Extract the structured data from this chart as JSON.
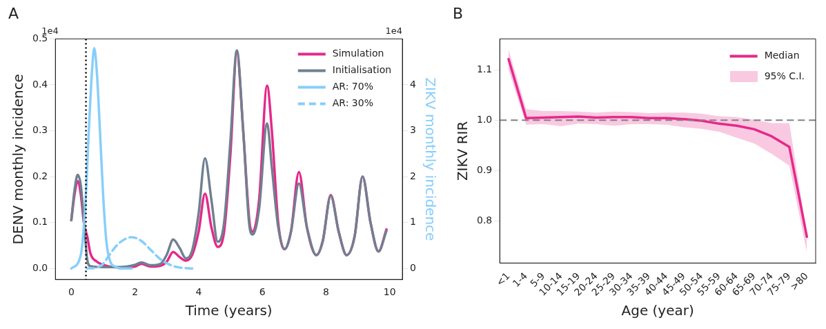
{
  "chart_data": [
    {
      "type": "line",
      "title": "A",
      "xlabel": "Time (years)",
      "ylabel": "DENV monthly incidence",
      "y2label": "ZIKV monthly incidence",
      "annotations": [
        "1e4",
        "1e4"
      ],
      "xlim": [
        -0.5,
        10.4
      ],
      "xticks": [
        0,
        2,
        4,
        6,
        8,
        10
      ],
      "ylim": [
        -0.024,
        0.5
      ],
      "yticks": [
        {
          "value": 0,
          "label": "0.0"
        },
        0.1,
        0.2,
        0.3,
        0.4,
        0.5
      ],
      "y2lim": [
        -0.24,
        5.0
      ],
      "y2ticks": [
        0,
        1,
        2,
        3,
        4
      ],
      "legend": "top right",
      "marker": "none",
      "ref_lines": [
        {
          "axis": "x",
          "value": 0.46,
          "color": "#000000",
          "line_style": "dotted"
        }
      ],
      "series": [
        {
          "name": "Simulation",
          "color": "#e6288a",
          "x": [
            0,
            0.1,
            0.2,
            0.3,
            0.4,
            0.5,
            0.6,
            0.8,
            1.0,
            1.5,
            2.0,
            2.2,
            2.5,
            2.8,
            3.0,
            3.2,
            3.4,
            3.6,
            3.8,
            4.0,
            4.2,
            4.4,
            4.6,
            4.8,
            5.0,
            5.2,
            5.4,
            5.6,
            5.7,
            5.9,
            6.15,
            6.3,
            6.5,
            6.7,
            6.9,
            7.15,
            7.4,
            7.7,
            7.9,
            8.15,
            8.4,
            8.65,
            8.9,
            9.15,
            9.4,
            9.65,
            9.9
          ],
          "values": [
            0.105,
            0.16,
            0.19,
            0.16,
            0.097,
            0.07,
            0.033,
            0.015,
            0.008,
            0.002,
            0.004,
            0.01,
            0.004,
            0.006,
            0.015,
            0.036,
            0.025,
            0.017,
            0.03,
            0.08,
            0.163,
            0.09,
            0.047,
            0.08,
            0.25,
            0.47,
            0.3,
            0.1,
            0.08,
            0.15,
            0.398,
            0.3,
            0.1,
            0.042,
            0.08,
            0.21,
            0.09,
            0.029,
            0.06,
            0.16,
            0.08,
            0.029,
            0.07,
            0.2,
            0.1,
            0.037,
            0.085
          ]
        },
        {
          "name": "Initialisation",
          "color": "#708090",
          "x": [
            0,
            0.1,
            0.2,
            0.3,
            0.4,
            0.5,
            0.6,
            1.0,
            1.5,
            2.0,
            2.2,
            2.5,
            2.8,
            3.0,
            3.2,
            3.4,
            3.6,
            3.8,
            4.0,
            4.2,
            4.4,
            4.6,
            4.8,
            5.0,
            5.2,
            5.4,
            5.6,
            5.7,
            5.9,
            6.15,
            6.3,
            6.5,
            6.7,
            6.9,
            7.15,
            7.4,
            7.7,
            7.9,
            8.15,
            8.4,
            8.65,
            8.9,
            9.15,
            9.4,
            9.65,
            9.9
          ],
          "values": [
            0.105,
            0.17,
            0.204,
            0.18,
            0.1,
            0.02,
            0.005,
            0.003,
            0.003,
            0.008,
            0.013,
            0.007,
            0.01,
            0.03,
            0.063,
            0.045,
            0.022,
            0.04,
            0.12,
            0.24,
            0.15,
            0.058,
            0.1,
            0.28,
            0.475,
            0.3,
            0.09,
            0.074,
            0.13,
            0.316,
            0.22,
            0.09,
            0.042,
            0.08,
            0.185,
            0.09,
            0.029,
            0.06,
            0.158,
            0.08,
            0.029,
            0.07,
            0.2,
            0.1,
            0.037,
            0.082
          ]
        },
        {
          "name": "AR: 70%",
          "color": "#87cefa",
          "axis": "y2",
          "x": [
            0,
            0.3,
            0.45,
            0.55,
            0.65,
            0.72,
            0.8,
            0.9,
            1.0,
            1.1,
            1.2,
            1.4,
            1.6,
            1.9
          ],
          "values": [
            0,
            0.3,
            1.5,
            3.0,
            4.3,
            4.8,
            4.3,
            3.0,
            1.6,
            0.6,
            0.2,
            0.03,
            0,
            0
          ]
        },
        {
          "name": "AR: 30%",
          "color": "#87cefa",
          "axis": "y2",
          "line_style": "dashed",
          "x": [
            0.5,
            0.8,
            1.0,
            1.2,
            1.5,
            1.9,
            2.2,
            2.5,
            2.8,
            3.1,
            3.4,
            3.8
          ],
          "values": [
            0,
            0.02,
            0.1,
            0.3,
            0.55,
            0.68,
            0.6,
            0.4,
            0.2,
            0.08,
            0.02,
            0
          ]
        }
      ]
    },
    {
      "type": "line",
      "title": "B",
      "xlabel": "Age (year)",
      "ylabel": "ZIKV RIR",
      "annotations": [
        "95% C.I."
      ],
      "categories": [
        "<1",
        "1-4",
        "5-9",
        "10-14",
        "15-19",
        "20-24",
        "25-29",
        "30-34",
        "35-39",
        "40-44",
        "45-49",
        "50-54",
        "55-59",
        "60-64",
        "65-69",
        "70-74",
        "75-79",
        ">80"
      ],
      "ylim": [
        0.717,
        1.161
      ],
      "yticks": [
        0.8,
        0.9,
        {
          "value": 1.0,
          "label": "1.0"
        },
        1.1
      ],
      "legend": "top right",
      "marker": "none",
      "ref_lines": [
        {
          "axis": "y",
          "value": 1.0,
          "color": "#808080",
          "line_style": "dashed"
        }
      ],
      "series": [
        {
          "name": "Median",
          "color": "#e6288a",
          "values": [
            1.121,
            1.004,
            1.005,
            1.006,
            1.007,
            1.005,
            1.006,
            1.006,
            1.004,
            1.004,
            1.002,
            0.999,
            0.993,
            0.989,
            0.982,
            0.968,
            0.947,
            0.769
          ],
          "lower": [
            1.1,
            0.991,
            0.992,
            0.988,
            0.993,
            0.992,
            0.989,
            0.992,
            0.992,
            0.991,
            0.986,
            0.983,
            0.977,
            0.965,
            0.954,
            0.933,
            0.91,
            0.738
          ],
          "upper": [
            1.14,
            1.022,
            1.018,
            1.018,
            1.017,
            1.015,
            1.017,
            1.016,
            1.014,
            1.015,
            1.015,
            1.013,
            1.008,
            1.006,
            1.001,
            0.994,
            0.994,
            0.775
          ]
        }
      ]
    }
  ]
}
